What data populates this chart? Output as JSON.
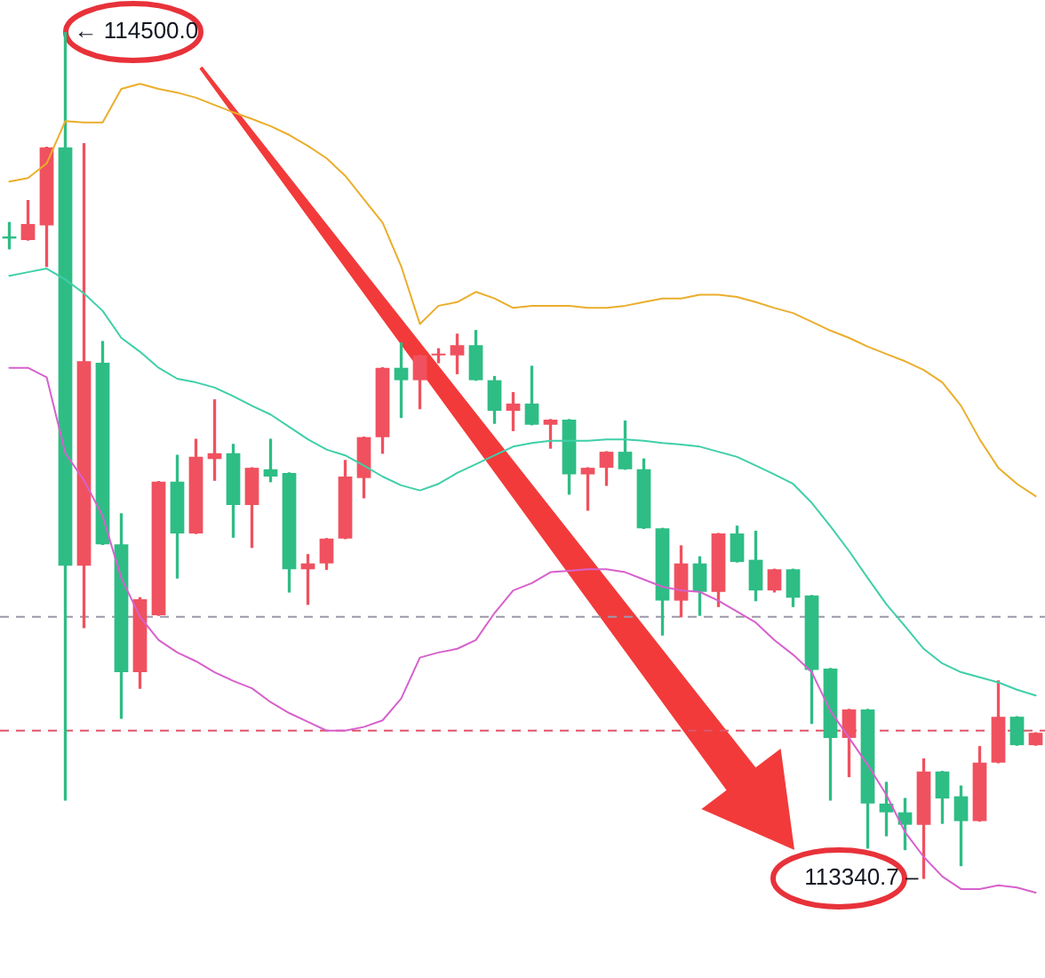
{
  "chart_data": {
    "type": "candlestick",
    "tick_labels": false,
    "legend": false,
    "categories": [
      null,
      null,
      null,
      null,
      null,
      null,
      null,
      null,
      null,
      null,
      null,
      null,
      null,
      null,
      null,
      null,
      null,
      null,
      null,
      null,
      null,
      null,
      null,
      null,
      null,
      null,
      null,
      null,
      null,
      null,
      null,
      null,
      null,
      null,
      null,
      null,
      null,
      null,
      null,
      null,
      null,
      null,
      null,
      null,
      null,
      null,
      null,
      null,
      null,
      null,
      null,
      null,
      null,
      null,
      null,
      null
    ],
    "ohlc": [
      [
        114220,
        114239,
        114203,
        114217
      ],
      [
        114215,
        114269,
        114215,
        114237
      ],
      [
        114235,
        114342,
        114179,
        114342
      ],
      [
        114342,
        114500.0,
        113448,
        113769
      ],
      [
        113769,
        114347,
        113684,
        114049
      ],
      [
        114047,
        114076,
        113798,
        113798
      ],
      [
        113798,
        113840,
        113560,
        113623
      ],
      [
        113623,
        113725,
        113601,
        113723
      ],
      [
        113701,
        113884,
        113701,
        113884
      ],
      [
        113884,
        113920,
        113752,
        113813
      ],
      [
        113813,
        113942,
        113813,
        113918
      ],
      [
        113915,
        113996,
        113886,
        113923
      ],
      [
        113923,
        113935,
        113808,
        113852
      ],
      [
        113852,
        113903,
        113794,
        113903
      ],
      [
        113901,
        113942,
        113884,
        113891
      ],
      [
        113896,
        113896,
        113733,
        113764
      ],
      [
        113764,
        113784,
        113716,
        113772
      ],
      [
        113772,
        113806,
        113764,
        113806
      ],
      [
        113806,
        113913,
        113806,
        113891
      ],
      [
        113889,
        113945,
        113862,
        113945
      ],
      [
        113945,
        114040,
        113923,
        114040
      ],
      [
        114040,
        114074,
        113972,
        114023
      ],
      [
        114023,
        114057,
        113984,
        114057
      ],
      [
        114057,
        114066,
        114047,
        114059
      ],
      [
        114057,
        114086,
        114032,
        114071
      ],
      [
        114071,
        114091,
        114023,
        114023
      ],
      [
        114023,
        114028,
        113964,
        113981
      ],
      [
        113981,
        114006,
        113954,
        113991
      ],
      [
        113991,
        114042,
        113962,
        113962
      ],
      [
        113962,
        113969,
        113930,
        113969
      ],
      [
        113969,
        113969,
        113867,
        113894
      ],
      [
        113894,
        113903,
        113845,
        113903
      ],
      [
        113903,
        113925,
        113879,
        113925
      ],
      [
        113925,
        113967,
        113901,
        113901
      ],
      [
        113901,
        113915,
        113820,
        113820
      ],
      [
        113820,
        113820,
        113674,
        113721
      ],
      [
        113721,
        113796,
        113699,
        113772
      ],
      [
        113772,
        113781,
        113701,
        113733
      ],
      [
        113733,
        113813,
        113713,
        113813
      ],
      [
        113813,
        113823,
        113774,
        113774
      ],
      [
        113777,
        113816,
        113721,
        113735
      ],
      [
        113735,
        113764,
        113733,
        113764
      ],
      [
        113764,
        113764,
        113713,
        113725
      ],
      [
        113728,
        113728,
        113553,
        113626
      ],
      [
        113628,
        113628,
        113448,
        113533
      ],
      [
        113533,
        113572,
        113480,
        113572
      ],
      [
        113572,
        113572,
        113382,
        113443
      ],
      [
        113443,
        113472,
        113399,
        113431
      ],
      [
        113431,
        113450,
        113380,
        113414
      ],
      [
        113414,
        113504,
        113340.7,
        113487
      ],
      [
        113487,
        113487,
        113416,
        113450
      ],
      [
        113453,
        113467,
        113358,
        113419
      ],
      [
        113419,
        113521,
        113419,
        113499
      ],
      [
        113499,
        113611,
        113499,
        113562
      ],
      [
        113562,
        113562,
        113523,
        113523
      ],
      [
        113523,
        113540,
        113523,
        113540
      ]
    ],
    "colors": [
      "#2ebd85",
      "#f0515f",
      "#f0515f",
      "#2ebd85",
      "#f0515f",
      "#2ebd85",
      "#2ebd85",
      "#f0515f",
      "#f0515f",
      "#2ebd85",
      "#f0515f",
      "#f0515f",
      "#2ebd85",
      "#f0515f",
      "#2ebd85",
      "#2ebd85",
      "#f0515f",
      "#f0515f",
      "#f0515f",
      "#f0515f",
      "#f0515f",
      "#2ebd85",
      "#f0515f",
      "#f0515f",
      "#f0515f",
      "#2ebd85",
      "#2ebd85",
      "#f0515f",
      "#2ebd85",
      "#f0515f",
      "#2ebd85",
      "#f0515f",
      "#f0515f",
      "#2ebd85",
      "#2ebd85",
      "#2ebd85",
      "#f0515f",
      "#2ebd85",
      "#f0515f",
      "#2ebd85",
      "#2ebd85",
      "#f0515f",
      "#2ebd85",
      "#2ebd85",
      "#2ebd85",
      "#f0515f",
      "#2ebd85",
      "#2ebd85",
      "#2ebd85",
      "#f0515f",
      "#2ebd85",
      "#2ebd85",
      "#f0515f",
      "#f0515f",
      "#2ebd85",
      "#f0515f"
    ],
    "series": [
      {
        "type": "line",
        "color": "#eaae2c",
        "values": [
          114295,
          114300,
          114320,
          114378,
          114376,
          114376,
          114422,
          114429,
          114422,
          114417,
          114410,
          114400,
          114390,
          114381,
          114371,
          114359,
          114344,
          114327,
          114303,
          114271,
          114239,
          114179,
          114100,
          114125,
          114130,
          114144,
          114135,
          114122,
          114125,
          114125,
          114125,
          114122,
          114122,
          114125,
          114130,
          114135,
          114135,
          114140,
          114140,
          114137,
          114130,
          114122,
          114115,
          114103,
          114091,
          114081,
          114069,
          114059,
          114049,
          114037,
          114020,
          113988,
          113942,
          113903,
          113881,
          113864
        ]
      },
      {
        "type": "line",
        "color": "#3fcfa9",
        "values": [
          114166,
          114171,
          114176,
          114161,
          114142,
          114118,
          114081,
          114062,
          114040,
          114025,
          114020,
          114013,
          114001,
          113988,
          113976,
          113959,
          113942,
          113928,
          113920,
          113906,
          113891,
          113879,
          113872,
          113881,
          113896,
          113908,
          113920,
          113932,
          113937,
          113940,
          113940,
          113940,
          113942,
          113942,
          113940,
          113937,
          113935,
          113932,
          113925,
          113918,
          113906,
          113894,
          113881,
          113855,
          113823,
          113789,
          113752,
          113716,
          113686,
          113655,
          113635,
          113623,
          113616,
          113609,
          113599,
          113591
        ]
      },
      {
        "type": "line",
        "color": "#d761cc",
        "values": [
          114040,
          114040,
          114027,
          113923,
          113886,
          113837,
          113752,
          113699,
          113667,
          113650,
          113638,
          113623,
          113611,
          113601,
          113582,
          113567,
          113555,
          113543,
          113543,
          113548,
          113557,
          113587,
          113643,
          113650,
          113655,
          113667,
          113704,
          113735,
          113745,
          113760,
          113762,
          113764,
          113764,
          113760,
          113750,
          113740,
          113735,
          113733,
          113721,
          113706,
          113691,
          113667,
          113647,
          113623,
          113570,
          113533,
          113496,
          113455,
          113404,
          113370,
          113343,
          113326,
          113326,
          113331,
          113328,
          113321
        ]
      }
    ],
    "ref_lines": [
      {
        "axis": "y",
        "value": 113699,
        "color": "#9c98a8",
        "line_style": "dashed"
      },
      {
        "axis": "y",
        "value": 113543,
        "color": "#e0566a",
        "line_style": "dashed"
      }
    ],
    "annotations": [
      "← 114500.0",
      "113340.7 –"
    ]
  }
}
